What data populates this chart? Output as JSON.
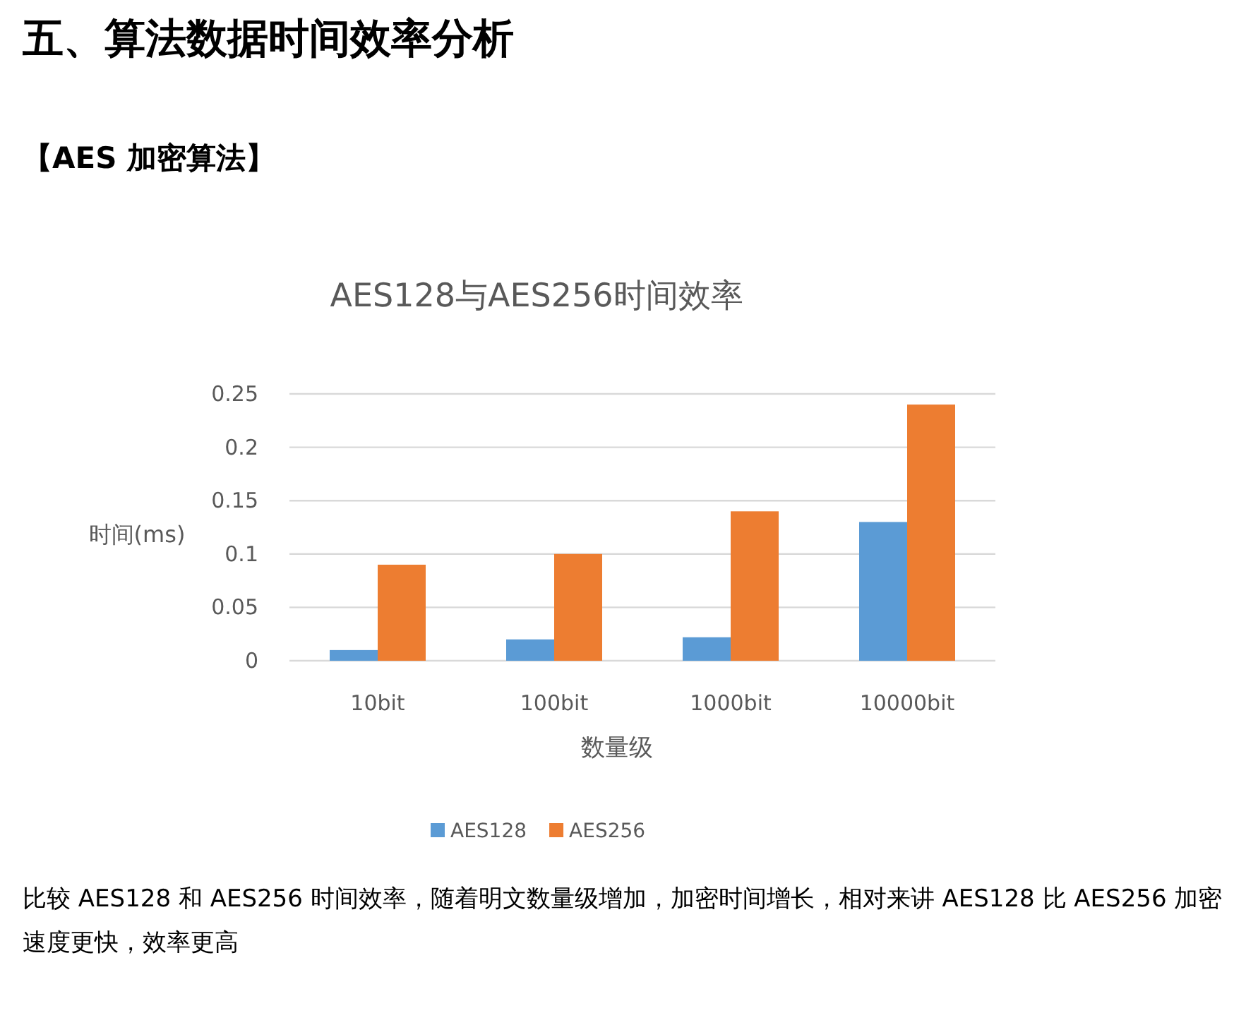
{
  "chart_data": {
    "type": "bar",
    "title": "AES128与AES256时间效率",
    "xlabel": "数量级",
    "ylabel": "时间(ms)",
    "categories": [
      "10bit",
      "100bit",
      "1000bit",
      "10000bit"
    ],
    "series": [
      {
        "name": "AES128",
        "color": "#5b9bd5",
        "values": [
          0.01,
          0.02,
          0.022,
          0.13
        ]
      },
      {
        "name": "AES256",
        "color": "#ed7d31",
        "values": [
          0.09,
          0.1,
          0.14,
          0.24
        ]
      }
    ],
    "ylim": [
      0,
      0.25
    ],
    "yticks": [
      0,
      0.05,
      0.1,
      0.15,
      0.2,
      0.25
    ],
    "grid": "y",
    "legend": "bottom",
    "annotations": [
      "五、算法数据时间效率分析",
      "【AES 加密算法】",
      "比较 AES128 和 AES256 时间效率，随着明文数量级增加，加密时间增长，相对来讲 AES128 比 AES256 加密速度更快，效率更高"
    ]
  }
}
